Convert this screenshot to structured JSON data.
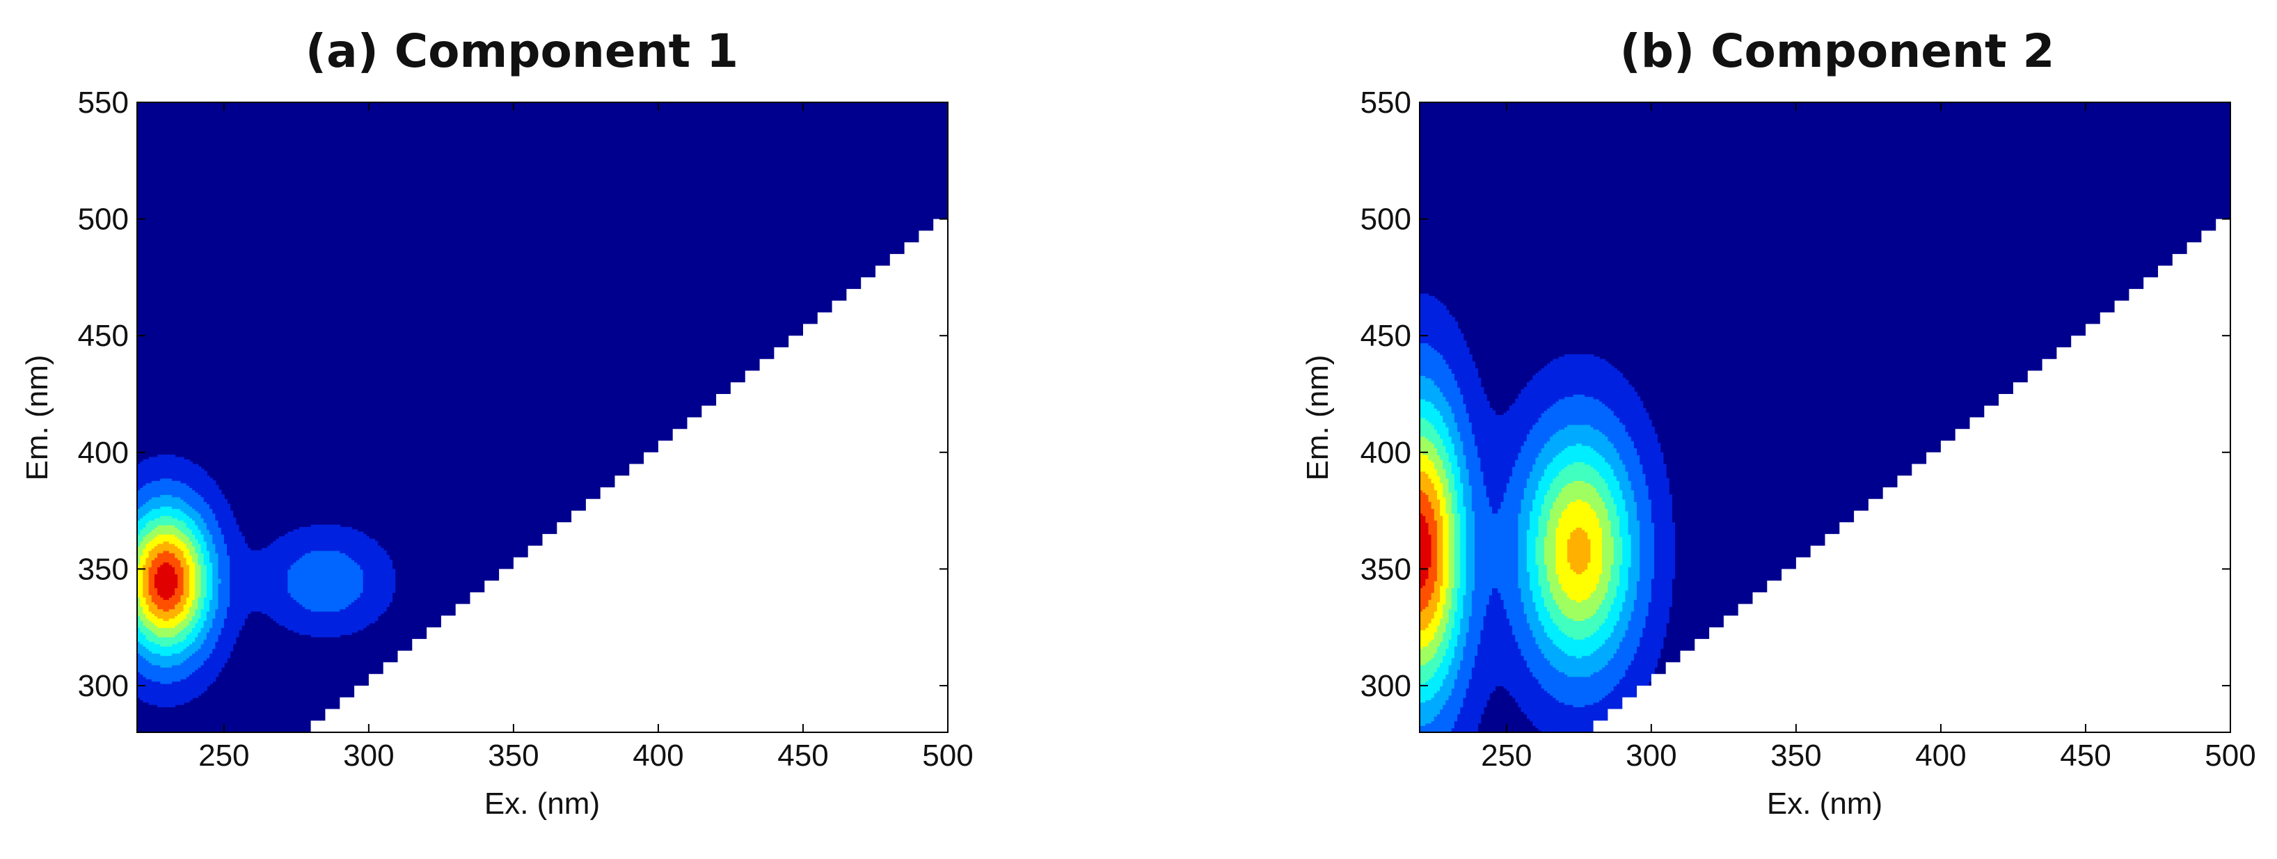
{
  "chart_data": [
    {
      "type": "contour",
      "title": "(a) Component 1",
      "xlabel": "Ex. (nm)",
      "ylabel": "Em. (nm)",
      "xlim": [
        220,
        500
      ],
      "ylim": [
        280,
        550
      ],
      "xticks": [
        250,
        300,
        350,
        400,
        450,
        500
      ],
      "yticks": [
        300,
        350,
        400,
        450,
        500,
        550
      ],
      "peaks": [
        {
          "ex": 230,
          "em": 345,
          "intensity": 1.0,
          "sx": 11,
          "sy": 22
        },
        {
          "ex": 285,
          "em": 345,
          "intensity": 0.22,
          "sx": 14,
          "sy": 14
        }
      ],
      "masked_region": "em < ex"
    },
    {
      "type": "contour",
      "title": "(b) Component 2",
      "xlabel": "Ex. (nm)",
      "ylabel": "Em. (nm)",
      "xlim": [
        220,
        500
      ],
      "ylim": [
        280,
        550
      ],
      "xticks": [
        250,
        300,
        350,
        400,
        450,
        500
      ],
      "yticks": [
        300,
        350,
        400,
        450,
        500,
        550
      ],
      "peaks": [
        {
          "ex": 220,
          "em": 358,
          "intensity": 1.0,
          "sx": 11,
          "sy": 45
        },
        {
          "ex": 275,
          "em": 358,
          "intensity": 0.78,
          "sx": 14,
          "sy": 36
        }
      ],
      "masked_region": "em < ex"
    }
  ],
  "colors": {
    "background": "#00008F",
    "scale": [
      "#00008F",
      "#0022E0",
      "#0066FF",
      "#00AAFF",
      "#00EEFF",
      "#40FFBF",
      "#A0FF60",
      "#FFFF00",
      "#FFB000",
      "#FF5000",
      "#E00000"
    ]
  }
}
